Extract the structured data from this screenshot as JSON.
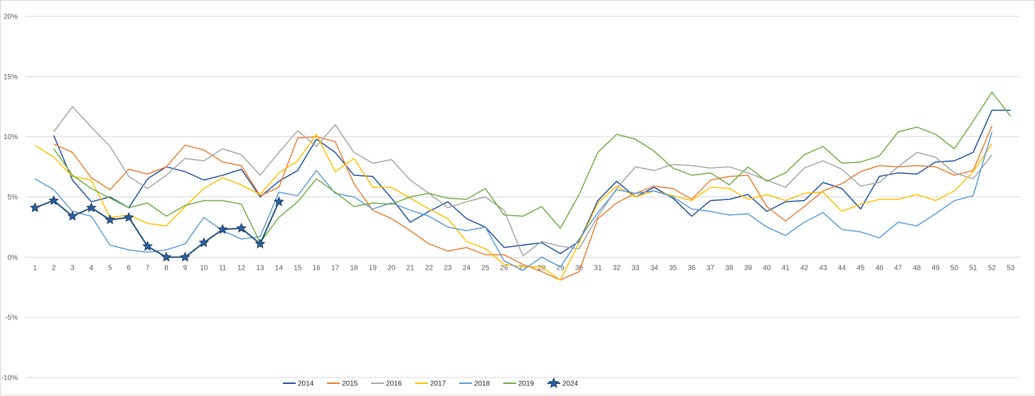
{
  "chart_data": {
    "type": "line",
    "title": "",
    "xlabel": "",
    "ylabel": "",
    "ylim": [
      -10,
      20
    ],
    "yticks": [
      -10,
      -5,
      0,
      5,
      10,
      15,
      20
    ],
    "ytick_labels": [
      "-10%",
      "-5%",
      "0%",
      "5%",
      "10%",
      "15%",
      "20%"
    ],
    "grid": true,
    "legend_position": "bottom",
    "categories": [
      "1",
      "2",
      "3",
      "4",
      "5",
      "6",
      "7",
      "8",
      "9",
      "10",
      "11",
      "12",
      "13",
      "14",
      "15",
      "16",
      "17",
      "18",
      "19",
      "20",
      "21",
      "22",
      "23",
      "24",
      "25",
      "26",
      "27",
      "28",
      "29",
      "30",
      "31",
      "32",
      "33",
      "34",
      "35",
      "36",
      "37",
      "38",
      "39",
      "40",
      "41",
      "42",
      "43",
      "44",
      "45",
      "46",
      "47",
      "48",
      "49",
      "50",
      "51",
      "52",
      "53"
    ],
    "series": [
      {
        "name": "2014",
        "color": "#1f4e9c",
        "marker": "none",
        "values": [
          null,
          10.1,
          6.4,
          4.6,
          5.0,
          4.1,
          6.5,
          7.5,
          7.1,
          6.4,
          6.8,
          7.3,
          5.0,
          6.3,
          7.2,
          9.8,
          8.7,
          6.8,
          6.7,
          4.9,
          2.9,
          3.8,
          4.6,
          3.2,
          2.5,
          0.8,
          1.0,
          1.2,
          0.3,
          1.3,
          4.7,
          6.3,
          5.0,
          5.8,
          4.9,
          3.4,
          4.7,
          4.8,
          5.2,
          3.8,
          4.6,
          4.7,
          6.2,
          5.7,
          4.0,
          6.7,
          7.0,
          6.9,
          7.9,
          8.0,
          8.7,
          12.2,
          12.2
        ]
      },
      {
        "name": "2015",
        "color": "#ed7d31",
        "marker": "none",
        "values": [
          null,
          9.4,
          8.7,
          6.6,
          5.6,
          7.3,
          6.9,
          7.5,
          9.3,
          8.9,
          7.9,
          7.6,
          5.1,
          5.8,
          9.9,
          10.0,
          9.6,
          6.1,
          3.9,
          3.2,
          2.2,
          1.1,
          0.5,
          0.8,
          0.2,
          0.2,
          -0.6,
          -1.2,
          -1.9,
          -1.2,
          3.2,
          4.5,
          5.3,
          5.9,
          5.7,
          4.8,
          6.4,
          6.7,
          6.8,
          4.2,
          3.0,
          4.2,
          5.5,
          6.1,
          7.1,
          7.6,
          7.5,
          7.6,
          7.5,
          6.8,
          7.2,
          10.9,
          null
        ]
      },
      {
        "name": "2016",
        "color": "#a5a5a5",
        "marker": "none",
        "values": [
          null,
          10.4,
          12.5,
          10.8,
          9.2,
          6.7,
          5.7,
          6.8,
          8.2,
          8.0,
          9.0,
          8.5,
          6.8,
          8.7,
          10.5,
          9.2,
          11.0,
          8.7,
          7.8,
          8.1,
          6.4,
          5.3,
          4.1,
          4.6,
          5.0,
          3.9,
          0.1,
          1.3,
          0.9,
          0.7,
          3.4,
          5.7,
          7.5,
          7.2,
          7.7,
          7.6,
          7.4,
          7.5,
          7.0,
          6.4,
          5.8,
          7.4,
          8.0,
          7.3,
          5.9,
          6.2,
          7.5,
          8.7,
          8.3,
          7.0,
          6.5,
          8.5,
          null
        ]
      },
      {
        "name": "2017",
        "color": "#ffc000",
        "marker": "none",
        "values": [
          9.3,
          8.3,
          6.7,
          6.4,
          3.3,
          3.5,
          2.8,
          2.6,
          4.2,
          5.7,
          6.6,
          6.0,
          5.2,
          7.0,
          8.0,
          10.2,
          7.1,
          8.2,
          5.8,
          5.8,
          4.9,
          4.0,
          3.2,
          1.3,
          0.7,
          -0.6,
          -0.8,
          -0.8,
          -1.9,
          1.2,
          4.5,
          5.9,
          5.0,
          5.5,
          5.1,
          4.7,
          5.8,
          5.7,
          4.8,
          5.2,
          4.7,
          5.3,
          5.4,
          3.8,
          4.4,
          4.8,
          4.8,
          5.2,
          4.7,
          5.5,
          7.1,
          9.4,
          null
        ]
      },
      {
        "name": "2018",
        "color": "#5b9bd5",
        "marker": "none",
        "values": [
          6.5,
          5.6,
          3.8,
          3.4,
          1.0,
          0.6,
          0.4,
          0.6,
          1.1,
          3.3,
          2.2,
          1.5,
          1.7,
          5.4,
          5.1,
          7.2,
          5.3,
          5.0,
          4.0,
          4.5,
          3.9,
          3.4,
          2.5,
          2.2,
          2.5,
          -0.3,
          -1.1,
          0.0,
          -0.8,
          1.5,
          3.7,
          5.6,
          5.3,
          5.5,
          5.0,
          4.0,
          3.8,
          3.5,
          3.6,
          2.5,
          1.8,
          2.9,
          3.7,
          2.3,
          2.1,
          1.6,
          2.9,
          2.6,
          3.6,
          4.7,
          5.1,
          10.4,
          null
        ]
      },
      {
        "name": "2019",
        "color": "#70ad47",
        "marker": "none",
        "values": [
          null,
          9.0,
          6.8,
          5.7,
          4.9,
          4.1,
          4.5,
          3.4,
          4.3,
          4.7,
          4.7,
          4.4,
          1.2,
          3.3,
          4.6,
          6.5,
          5.4,
          4.2,
          4.5,
          4.4,
          5.0,
          5.3,
          4.9,
          4.8,
          5.7,
          3.5,
          3.4,
          4.2,
          2.4,
          5.2,
          8.7,
          10.2,
          9.8,
          8.8,
          7.4,
          6.8,
          7.0,
          6.0,
          7.5,
          6.3,
          7.0,
          8.5,
          9.2,
          7.8,
          7.9,
          8.4,
          10.4,
          10.8,
          10.2,
          9.0,
          11.3,
          13.7,
          11.7
        ]
      },
      {
        "name": "2024",
        "color": "#1f4e79",
        "marker": "star",
        "values": [
          4.1,
          4.7,
          3.4,
          4.1,
          3.1,
          3.3,
          0.9,
          0.0,
          0.0,
          1.2,
          2.3,
          2.4,
          1.1,
          4.6,
          null,
          null,
          null,
          null,
          null,
          null,
          null,
          null,
          null,
          null,
          null,
          null,
          null,
          null,
          null,
          null,
          null,
          null,
          null,
          null,
          null,
          null,
          null,
          null,
          null,
          null,
          null,
          null,
          null,
          null,
          null,
          null,
          null,
          null,
          null,
          null,
          null,
          null,
          null
        ]
      }
    ]
  }
}
